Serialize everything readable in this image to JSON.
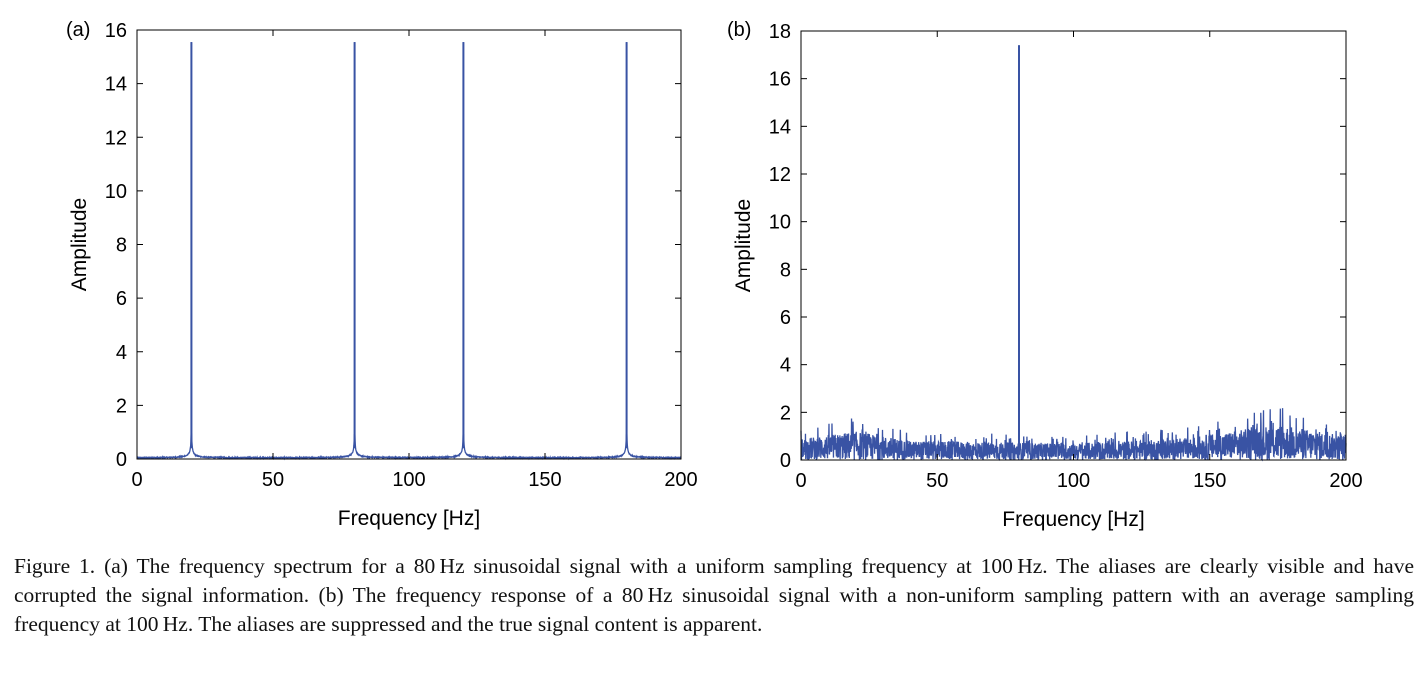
{
  "chart_data": [
    {
      "type": "line",
      "panel_label": "(a)",
      "xlabel": "Frequency [Hz]",
      "ylabel": "Amplitude",
      "xlim": [
        0,
        200
      ],
      "ylim": [
        0,
        16
      ],
      "x_ticks": [
        0,
        50,
        100,
        150,
        200
      ],
      "y_ticks": [
        0,
        2,
        4,
        6,
        8,
        10,
        12,
        14,
        16
      ],
      "grid": false,
      "color": "#3953a4",
      "peaks": [
        {
          "x": 20,
          "y": 15.55
        },
        {
          "x": 80,
          "y": 15.55
        },
        {
          "x": 120,
          "y": 15.55
        },
        {
          "x": 180,
          "y": 15.55
        }
      ],
      "noise_floor": 0.05
    },
    {
      "type": "line",
      "panel_label": "(b)",
      "xlabel": "Frequency [Hz]",
      "ylabel": "Amplitude",
      "xlim": [
        0,
        200
      ],
      "ylim": [
        0,
        18
      ],
      "x_ticks": [
        0,
        50,
        100,
        150,
        200
      ],
      "y_ticks": [
        0,
        2,
        4,
        6,
        8,
        10,
        12,
        14,
        16,
        18
      ],
      "grid": false,
      "color": "#3953a4",
      "peaks": [
        {
          "x": 80,
          "y": 17.4
        }
      ],
      "noise_envelope": [
        {
          "x": 0,
          "y": 0.9
        },
        {
          "x": 20,
          "y": 1.2
        },
        {
          "x": 40,
          "y": 0.8
        },
        {
          "x": 100,
          "y": 0.7
        },
        {
          "x": 140,
          "y": 0.9
        },
        {
          "x": 175,
          "y": 1.5
        },
        {
          "x": 200,
          "y": 1.0
        }
      ]
    }
  ],
  "caption": "Figure 1.  (a) The frequency spectrum for a 80 Hz sinusoidal signal with a uniform sampling frequency at 100 Hz. The aliases are clearly visible and have corrupted the signal information. (b) The frequency response of a 80 Hz sinusoidal signal with a non-uniform sampling pattern with an average sampling frequency at 100 Hz. The aliases are suppressed and the true signal content is apparent."
}
